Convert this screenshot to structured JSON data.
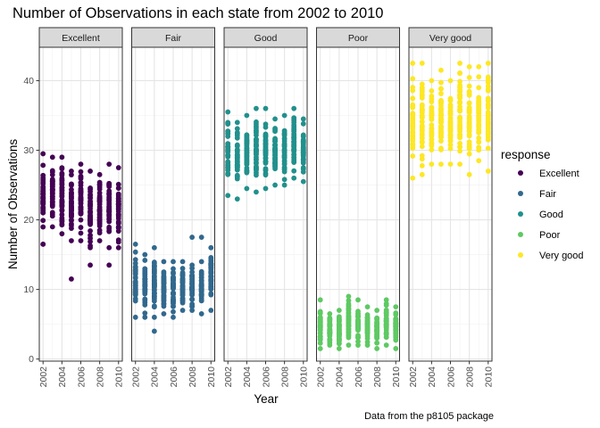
{
  "chart_data": {
    "type": "scatter",
    "title": "Number of Observations in each state from 2002 to 2010",
    "xlabel": "Year",
    "ylabel": "Number of Observations",
    "caption": "Data from the p8105 package",
    "legend_title": "response",
    "legend_position": "right",
    "grid": true,
    "xlim": [
      2001.6,
      2010.4
    ],
    "ylim": [
      -0.3,
      44.8
    ],
    "x_ticks": [
      "2002",
      "2004",
      "2006",
      "2008",
      "2010"
    ],
    "y_ticks": [
      "0",
      "10",
      "20",
      "30",
      "40"
    ],
    "facets": [
      "Excellent",
      "Fair",
      "Good",
      "Poor",
      "Very good"
    ],
    "series": [
      {
        "name": "Excellent",
        "color": "#440154",
        "points": [
          {
            "x": 2002,
            "min": 16.5,
            "max": 29.5,
            "outliers": [
              16.5
            ]
          },
          {
            "x": 2003,
            "min": 19,
            "max": 29,
            "outliers": []
          },
          {
            "x": 2004,
            "min": 18,
            "max": 29,
            "outliers": []
          },
          {
            "x": 2005,
            "min": 17,
            "max": 27,
            "outliers": [
              11.5
            ]
          },
          {
            "x": 2006,
            "min": 17,
            "max": 28,
            "outliers": []
          },
          {
            "x": 2007,
            "min": 16,
            "max": 27,
            "outliers": [
              13.5
            ]
          },
          {
            "x": 2008,
            "min": 17,
            "max": 26.5,
            "outliers": []
          },
          {
            "x": 2009,
            "min": 16,
            "max": 28,
            "outliers": [
              13.5
            ]
          },
          {
            "x": 2010,
            "min": 16,
            "max": 27.5,
            "outliers": []
          }
        ]
      },
      {
        "name": "Fair",
        "color": "#31688e",
        "points": [
          {
            "x": 2002,
            "min": 6,
            "max": 16.5,
            "outliers": []
          },
          {
            "x": 2003,
            "min": 6,
            "max": 15,
            "outliers": []
          },
          {
            "x": 2004,
            "min": 6,
            "max": 16,
            "outliers": [
              4
            ]
          },
          {
            "x": 2005,
            "min": 6.5,
            "max": 14,
            "outliers": []
          },
          {
            "x": 2006,
            "min": 6,
            "max": 14,
            "outliers": []
          },
          {
            "x": 2007,
            "min": 7,
            "max": 14,
            "outliers": []
          },
          {
            "x": 2008,
            "min": 7,
            "max": 13.5,
            "outliers": [
              17.5
            ]
          },
          {
            "x": 2009,
            "min": 6.5,
            "max": 14,
            "outliers": [
              17.5
            ]
          },
          {
            "x": 2010,
            "min": 7,
            "max": 16,
            "outliers": []
          }
        ]
      },
      {
        "name": "Good",
        "color": "#21908c",
        "points": [
          {
            "x": 2002,
            "min": 23.5,
            "max": 35.5,
            "outliers": []
          },
          {
            "x": 2003,
            "min": 23,
            "max": 34,
            "outliers": []
          },
          {
            "x": 2004,
            "min": 24.5,
            "max": 35,
            "outliers": []
          },
          {
            "x": 2005,
            "min": 24,
            "max": 36,
            "outliers": []
          },
          {
            "x": 2006,
            "min": 24.5,
            "max": 36,
            "outliers": []
          },
          {
            "x": 2007,
            "min": 25,
            "max": 34.5,
            "outliers": []
          },
          {
            "x": 2008,
            "min": 25,
            "max": 35,
            "outliers": []
          },
          {
            "x": 2009,
            "min": 26,
            "max": 36,
            "outliers": []
          },
          {
            "x": 2010,
            "min": 25.5,
            "max": 34.5,
            "outliers": []
          }
        ]
      },
      {
        "name": "Poor",
        "color": "#5ec962",
        "points": [
          {
            "x": 2002,
            "min": 1.5,
            "max": 8.5,
            "outliers": []
          },
          {
            "x": 2003,
            "min": 2,
            "max": 6.5,
            "outliers": []
          },
          {
            "x": 2004,
            "min": 1.5,
            "max": 7,
            "outliers": []
          },
          {
            "x": 2005,
            "min": 2,
            "max": 9,
            "outliers": []
          },
          {
            "x": 2006,
            "min": 2,
            "max": 8.5,
            "outliers": []
          },
          {
            "x": 2007,
            "min": 2,
            "max": 7.5,
            "outliers": []
          },
          {
            "x": 2008,
            "min": 1.5,
            "max": 7,
            "outliers": []
          },
          {
            "x": 2009,
            "min": 2,
            "max": 8.5,
            "outliers": []
          },
          {
            "x": 2010,
            "min": 1.5,
            "max": 7.5,
            "outliers": []
          }
        ]
      },
      {
        "name": "Very good",
        "color": "#fde725",
        "points": [
          {
            "x": 2002,
            "min": 26,
            "max": 42.5,
            "outliers": []
          },
          {
            "x": 2003,
            "min": 26.5,
            "max": 42.5,
            "outliers": []
          },
          {
            "x": 2004,
            "min": 28,
            "max": 40,
            "outliers": []
          },
          {
            "x": 2005,
            "min": 28,
            "max": 41.5,
            "outliers": []
          },
          {
            "x": 2006,
            "min": 28,
            "max": 40,
            "outliers": []
          },
          {
            "x": 2007,
            "min": 28,
            "max": 42.5,
            "outliers": []
          },
          {
            "x": 2008,
            "min": 26.5,
            "max": 42,
            "outliers": []
          },
          {
            "x": 2009,
            "min": 28.5,
            "max": 42,
            "outliers": []
          },
          {
            "x": 2010,
            "min": 27,
            "max": 42.5,
            "outliers": []
          }
        ]
      }
    ]
  }
}
